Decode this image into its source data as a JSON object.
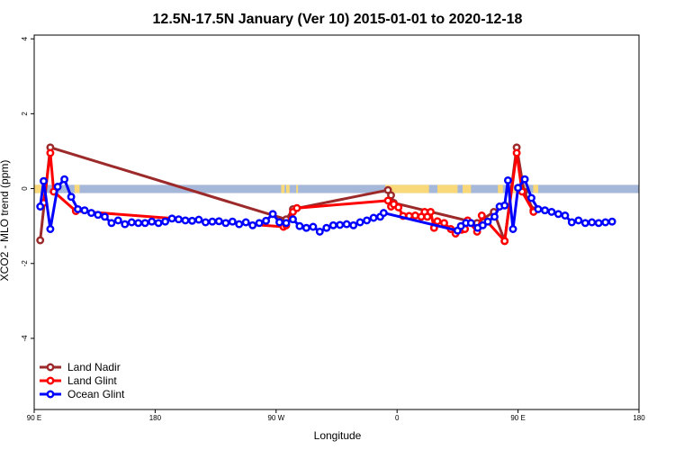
{
  "chart_data": {
    "type": "line",
    "title": "12.5N-17.5N January (Ver 10)   2015-01-01 to 2020-12-18",
    "xlabel": "Longitude",
    "ylabel": "XCO2 - MLO trend (ppm)",
    "xlim": [
      90,
      450
    ],
    "ylim": [
      -5.9,
      4.1
    ],
    "x_ticks": [
      {
        "value": 90,
        "label": "90 E"
      },
      {
        "value": 162,
        "label": "180"
      },
      {
        "value": 234,
        "label": "90 W"
      },
      {
        "value": 306,
        "label": "0"
      },
      {
        "value": 378,
        "label": "90 E"
      },
      {
        "value": 450,
        "label": "180"
      }
    ],
    "y_ticks": [
      {
        "value": 4,
        "label": "4"
      },
      {
        "value": 2,
        "label": "2"
      },
      {
        "value": 0,
        "label": "0"
      },
      {
        "value": -2,
        "label": "-2"
      },
      {
        "value": -4,
        "label": "-4"
      }
    ],
    "grid": false,
    "legend_position": "bottom-left",
    "land_ocean_strip": {
      "y_top": 0.1,
      "y_bottom": -0.12,
      "ocean_color": "#a6b8d9",
      "land_color": "#f8d878",
      "land_ranges": [
        [
          90,
          95
        ],
        [
          114,
          117
        ],
        [
          237,
          239
        ],
        [
          240,
          242
        ],
        [
          246,
          247
        ],
        [
          299,
          325
        ],
        [
          330,
          342
        ],
        [
          345,
          350
        ],
        [
          366,
          369
        ],
        [
          375,
          380
        ],
        [
          382,
          384
        ],
        [
          387,
          390
        ]
      ]
    },
    "series": [
      {
        "name": "Land Nadir",
        "color": "#9c2a2a",
        "points": [
          [
            93.6,
            -1.38
          ],
          [
            99.6,
            1.1
          ],
          [
            240,
            -0.82
          ],
          [
            244,
            -0.55
          ],
          [
            300.6,
            -0.04
          ],
          [
            302.4,
            -0.18
          ],
          [
            304,
            -0.38
          ],
          [
            353.6,
            -0.92
          ],
          [
            363.6,
            -0.62
          ],
          [
            370,
            -1.4
          ],
          [
            377.2,
            1.1
          ],
          [
            381.6,
            -0.08
          ],
          [
            387.2,
            -0.58
          ]
        ]
      },
      {
        "name": "Land Glint",
        "color": "#ff0000",
        "points": [
          [
            95.6,
            -0.38
          ],
          [
            99.6,
            0.95
          ],
          [
            101.6,
            -0.08
          ],
          [
            114.8,
            -0.6
          ],
          [
            238.4,
            -1.02
          ],
          [
            240,
            -0.98
          ],
          [
            244,
            -0.62
          ],
          [
            246.4,
            -0.52
          ],
          [
            300.6,
            -0.32
          ],
          [
            302.4,
            -0.48
          ],
          [
            304,
            -0.42
          ],
          [
            306.8,
            -0.5
          ],
          [
            309.6,
            -0.73
          ],
          [
            313.2,
            -0.73
          ],
          [
            316.8,
            -0.72
          ],
          [
            320.4,
            -0.75
          ],
          [
            322.4,
            -0.62
          ],
          [
            324,
            -0.75
          ],
          [
            326,
            -0.62
          ],
          [
            328,
            -1.05
          ],
          [
            330,
            -0.87
          ],
          [
            334,
            -0.92
          ],
          [
            338,
            -1.08
          ],
          [
            340.8,
            -1.2
          ],
          [
            344.4,
            -1.1
          ],
          [
            346.4,
            -1.08
          ],
          [
            348,
            -0.85
          ],
          [
            353.6,
            -1.15
          ],
          [
            356.4,
            -0.72
          ],
          [
            370,
            -1.4
          ],
          [
            377.2,
            0.95
          ],
          [
            380.4,
            -0.08
          ],
          [
            387.2,
            -0.62
          ]
        ]
      },
      {
        "name": "Ocean Glint",
        "color": "#0000ff",
        "points": [
          [
            93.6,
            -0.48
          ],
          [
            95.6,
            0.2
          ],
          [
            99.6,
            -1.08
          ],
          [
            104,
            0.05
          ],
          [
            108,
            0.25
          ],
          [
            112,
            -0.22
          ],
          [
            116,
            -0.55
          ],
          [
            120,
            -0.58
          ],
          [
            124,
            -0.65
          ],
          [
            128,
            -0.7
          ],
          [
            132,
            -0.75
          ],
          [
            136,
            -0.92
          ],
          [
            140,
            -0.85
          ],
          [
            144,
            -0.95
          ],
          [
            148,
            -0.9
          ],
          [
            152,
            -0.92
          ],
          [
            156,
            -0.92
          ],
          [
            160,
            -0.88
          ],
          [
            164,
            -0.92
          ],
          [
            168,
            -0.88
          ],
          [
            172,
            -0.8
          ],
          [
            176,
            -0.82
          ],
          [
            180,
            -0.85
          ],
          [
            184,
            -0.86
          ],
          [
            188,
            -0.83
          ],
          [
            192,
            -0.9
          ],
          [
            196,
            -0.88
          ],
          [
            200,
            -0.87
          ],
          [
            204,
            -0.92
          ],
          [
            208,
            -0.88
          ],
          [
            212,
            -0.95
          ],
          [
            216,
            -0.9
          ],
          [
            220,
            -0.98
          ],
          [
            224,
            -0.92
          ],
          [
            228,
            -0.86
          ],
          [
            232,
            -0.68
          ],
          [
            236,
            -0.9
          ],
          [
            240,
            -0.92
          ],
          [
            244,
            -0.82
          ],
          [
            248,
            -1.0
          ],
          [
            252,
            -1.05
          ],
          [
            256,
            -1.02
          ],
          [
            260,
            -1.15
          ],
          [
            264,
            -1.05
          ],
          [
            268,
            -0.98
          ],
          [
            272,
            -0.97
          ],
          [
            276,
            -0.95
          ],
          [
            280,
            -0.98
          ],
          [
            284,
            -0.9
          ],
          [
            288,
            -0.85
          ],
          [
            292,
            -0.78
          ],
          [
            296,
            -0.75
          ],
          [
            298,
            -0.65
          ],
          [
            342,
            -1.12
          ],
          [
            344,
            -1.0
          ],
          [
            347,
            -0.92
          ],
          [
            350,
            -0.92
          ],
          [
            354,
            -1.05
          ],
          [
            357,
            -0.98
          ],
          [
            360,
            -0.88
          ],
          [
            364,
            -0.75
          ],
          [
            367,
            -0.48
          ],
          [
            370,
            -0.45
          ],
          [
            372,
            0.22
          ],
          [
            375,
            -1.08
          ],
          [
            378,
            0.02
          ],
          [
            382,
            0.25
          ],
          [
            386,
            -0.25
          ],
          [
            390,
            -0.55
          ],
          [
            394,
            -0.58
          ],
          [
            398,
            -0.62
          ],
          [
            402,
            -0.68
          ],
          [
            406,
            -0.72
          ],
          [
            410,
            -0.9
          ],
          [
            414,
            -0.85
          ],
          [
            418,
            -0.92
          ],
          [
            422,
            -0.9
          ],
          [
            426,
            -0.92
          ],
          [
            430,
            -0.9
          ],
          [
            434,
            -0.88
          ]
        ]
      }
    ]
  }
}
